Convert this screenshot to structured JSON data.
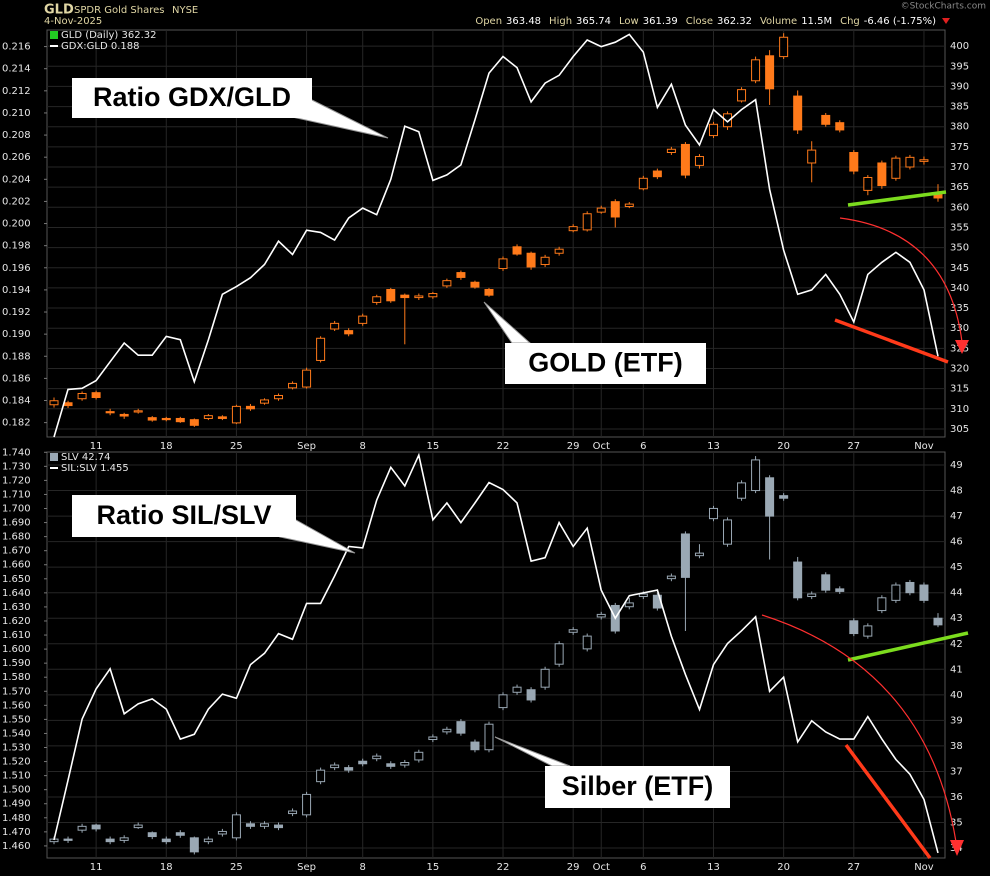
{
  "header": {
    "symbol": "GLD",
    "name": "SPDR Gold Shares",
    "exchange": "NYSE",
    "date": "4-Nov-2025",
    "watermark": "©StockCharts.com",
    "quote": [
      {
        "label": "Open",
        "value": 363.48
      },
      {
        "label": "High",
        "value": 365.74
      },
      {
        "label": "Low",
        "value": 361.39
      },
      {
        "label": "Close",
        "value": 362.32
      },
      {
        "label": "Volume",
        "value": "11.5M"
      },
      {
        "label": "Chg",
        "value": "-6.46 (-1.75%)"
      }
    ]
  },
  "chart_data": [
    {
      "type": "candlestick",
      "categories": [
        null,
        null,
        null,
        "11",
        null,
        null,
        null,
        null,
        "18",
        null,
        null,
        null,
        null,
        "25",
        null,
        null,
        null,
        null,
        "Sep",
        null,
        null,
        null,
        "8",
        null,
        null,
        null,
        null,
        "15",
        null,
        null,
        null,
        null,
        "22",
        null,
        null,
        null,
        null,
        "29",
        null,
        "Oct",
        null,
        null,
        "6",
        null,
        null,
        null,
        null,
        "13",
        null,
        null,
        null,
        null,
        "20",
        null,
        null,
        null,
        null,
        "27",
        null,
        null,
        null,
        null,
        "Nov",
        null
      ],
      "ylim": [
        0.1807,
        0.2175
      ],
      "yticks": [
        0.182,
        0.184,
        0.186,
        0.188,
        {
          "value": 0.19,
          "label": "0.190"
        },
        0.192,
        0.194,
        0.196,
        0.198,
        {
          "value": 0.2,
          "label": "0.200"
        },
        0.202,
        0.204,
        0.206,
        0.208,
        {
          "value": 0.21,
          "label": "0.210"
        },
        0.212,
        0.214,
        0.216
      ],
      "y2lim": [
        303,
        404
      ],
      "y2ticks": [
        305,
        310,
        315,
        320,
        325,
        330,
        335,
        340,
        345,
        350,
        355,
        360,
        365,
        370,
        375,
        380,
        385,
        390,
        395,
        400
      ],
      "grid": true,
      "annotations": [
        "Ratio GDX/GLD",
        "GOLD (ETF)"
      ],
      "series": [
        {
          "name": "GLD (Daily) 362.32",
          "type": "candlestick",
          "axis": "y2",
          "color": "#ff7a1a",
          "legend_color": "#22cc22",
          "open": [
            311.0,
            311.5,
            312.5,
            314.0,
            309.3,
            308.6,
            309.2,
            307.8,
            307.6,
            307.6,
            307.3,
            307.6,
            308.0,
            306.5,
            310.6,
            311.4,
            312.5,
            315.2,
            315.4,
            322.0,
            329.8,
            329.4,
            331.2,
            336.4,
            339.6,
            338.2,
            337.6,
            337.8,
            340.5,
            343.8,
            341.4,
            339.6,
            344.8,
            350.2,
            348.6,
            345.8,
            348.6,
            354.2,
            354.4,
            358.8,
            361.4,
            360.2,
            364.6,
            369.0,
            373.6,
            375.6,
            370.4,
            377.8,
            380.0,
            386.4,
            391.4,
            397.6,
            397.4,
            387.6,
            371.0,
            382.8,
            381.0,
            373.6,
            364.2,
            371.0,
            367.2,
            370.0,
            371.4,
            363.48
          ],
          "high": [
            312.8,
            312.0,
            314.3,
            314.5,
            310.0,
            309.0,
            310.0,
            308.2,
            308.0,
            308.0,
            307.6,
            308.7,
            308.4,
            311.0,
            311.2,
            312.6,
            313.8,
            316.8,
            320.2,
            328.0,
            331.8,
            330.0,
            333.6,
            338.3,
            340.0,
            338.6,
            338.6,
            339.0,
            342.3,
            344.3,
            341.8,
            340.0,
            347.8,
            350.8,
            349.0,
            348.2,
            350.2,
            355.8,
            359.0,
            360.4,
            362.0,
            361.3,
            367.8,
            369.6,
            375.0,
            376.2,
            373.2,
            381.2,
            383.8,
            389.8,
            397.4,
            399.0,
            403.2,
            389.0,
            376.4,
            383.4,
            381.6,
            374.2,
            368.0,
            371.6,
            372.8,
            373.0,
            372.6,
            365.74
          ],
          "low": [
            310.3,
            310.2,
            312.0,
            312.3,
            308.4,
            307.5,
            308.8,
            306.8,
            306.9,
            306.5,
            305.5,
            307.2,
            307.2,
            306.2,
            309.5,
            311.0,
            312.0,
            314.8,
            315.0,
            321.5,
            329.3,
            328.0,
            330.6,
            335.8,
            336.3,
            326.0,
            337.0,
            337.3,
            340.0,
            342.0,
            339.8,
            337.8,
            344.2,
            348.0,
            344.5,
            345.2,
            348.0,
            353.8,
            354.0,
            358.4,
            355.0,
            359.8,
            364.2,
            367.0,
            373.0,
            367.2,
            369.6,
            377.2,
            379.2,
            386.0,
            390.8,
            385.4,
            396.8,
            378.2,
            366.2,
            380.0,
            378.6,
            368.2,
            363.0,
            364.6,
            366.6,
            369.4,
            370.6,
            361.39
          ],
          "close": [
            312.0,
            310.8,
            313.8,
            312.8,
            309.0,
            308.2,
            309.5,
            307.2,
            307.3,
            306.8,
            305.9,
            308.3,
            307.6,
            310.6,
            310.0,
            312.2,
            313.3,
            316.3,
            319.6,
            327.5,
            331.2,
            328.6,
            333.0,
            337.8,
            336.8,
            337.6,
            338.0,
            338.6,
            341.8,
            342.6,
            340.2,
            338.2,
            347.2,
            348.4,
            345.2,
            347.6,
            349.6,
            355.2,
            358.4,
            359.8,
            357.6,
            360.8,
            367.2,
            367.6,
            374.4,
            368.0,
            372.6,
            380.6,
            383.2,
            389.2,
            396.6,
            389.4,
            402.2,
            379.2,
            374.2,
            380.6,
            379.2,
            369.0,
            367.4,
            365.4,
            372.2,
            372.4,
            371.8,
            362.32
          ]
        },
        {
          "name": "GDX:GLD 0.188",
          "type": "line",
          "color": "#ffffff",
          "values": [
            0.1807,
            0.185,
            0.1851,
            0.1858,
            0.1875,
            0.1892,
            0.1881,
            0.1881,
            0.1898,
            0.1895,
            0.1857,
            0.1895,
            0.1936,
            0.1943,
            0.1951,
            0.1963,
            0.1984,
            0.1972,
            0.1994,
            0.1992,
            0.1985,
            0.2005,
            0.2014,
            0.2008,
            0.204,
            0.2088,
            0.2083,
            0.2039,
            0.2044,
            0.2053,
            0.2094,
            0.2136,
            0.2151,
            0.2141,
            0.211,
            0.2127,
            0.2134,
            0.2151,
            0.2166,
            0.216,
            0.2164,
            0.2171,
            0.2155,
            0.2105,
            0.2126,
            0.2089,
            0.2071,
            0.2103,
            0.2092,
            0.2103,
            0.2112,
            0.2031,
            0.1976,
            0.1936,
            0.194,
            0.1954,
            0.1936,
            0.1911,
            0.1954,
            0.1965,
            0.1974,
            0.1965,
            0.194,
            0.188
          ]
        }
      ]
    },
    {
      "type": "candlestick",
      "categories": [
        null,
        null,
        null,
        "11",
        null,
        null,
        null,
        null,
        "18",
        null,
        null,
        null,
        null,
        "25",
        null,
        null,
        null,
        null,
        "Sep",
        null,
        null,
        null,
        "8",
        null,
        null,
        null,
        null,
        "15",
        null,
        null,
        null,
        null,
        "22",
        null,
        null,
        null,
        null,
        "29",
        null,
        "Oct",
        null,
        null,
        "6",
        null,
        null,
        null,
        null,
        "13",
        null,
        null,
        null,
        null,
        "20",
        null,
        null,
        null,
        null,
        "27",
        null,
        null,
        null,
        null,
        "Nov",
        null
      ],
      "ylim": [
        1.4514,
        1.7402
      ],
      "yticks": [
        {
          "value": 1.46,
          "label": "1.460"
        },
        {
          "value": 1.47,
          "label": "1.470"
        },
        {
          "value": 1.48,
          "label": "1.480"
        },
        {
          "value": 1.49,
          "label": "1.490"
        },
        {
          "value": 1.5,
          "label": "1.500"
        },
        {
          "value": 1.51,
          "label": "1.510"
        },
        {
          "value": 1.52,
          "label": "1.520"
        },
        {
          "value": 1.53,
          "label": "1.530"
        },
        {
          "value": 1.54,
          "label": "1.540"
        },
        {
          "value": 1.55,
          "label": "1.550"
        },
        {
          "value": 1.56,
          "label": "1.560"
        },
        {
          "value": 1.57,
          "label": "1.570"
        },
        {
          "value": 1.58,
          "label": "1.580"
        },
        {
          "value": 1.59,
          "label": "1.590"
        },
        {
          "value": 1.6,
          "label": "1.600"
        },
        {
          "value": 1.61,
          "label": "1.610"
        },
        {
          "value": 1.62,
          "label": "1.620"
        },
        {
          "value": 1.63,
          "label": "1.630"
        },
        {
          "value": 1.64,
          "label": "1.640"
        },
        {
          "value": 1.65,
          "label": "1.650"
        },
        {
          "value": 1.66,
          "label": "1.660"
        },
        {
          "value": 1.67,
          "label": "1.670"
        },
        {
          "value": 1.68,
          "label": "1.680"
        },
        {
          "value": 1.69,
          "label": "1.690"
        },
        {
          "value": 1.7,
          "label": "1.700"
        },
        {
          "value": 1.71,
          "label": "1.710"
        },
        {
          "value": 1.72,
          "label": "1.720"
        },
        {
          "value": 1.73,
          "label": "1.730"
        },
        {
          "value": 1.74,
          "label": "1.740"
        }
      ],
      "y2lim": [
        33.61,
        49.51
      ],
      "y2ticks": [
        34,
        35,
        36,
        37,
        38,
        39,
        40,
        41,
        42,
        43,
        44,
        45,
        46,
        47,
        48,
        49
      ],
      "grid": true,
      "annotations": [
        "Ratio SIL/SLV",
        "Silber (ETF)"
      ],
      "series": [
        {
          "name": "SLV 42.74",
          "type": "candlestick",
          "axis": "y2",
          "color": "#9aa8b4",
          "legend_color": "#9aa8b4",
          "open": [
            34.25,
            34.35,
            34.7,
            34.9,
            34.35,
            34.3,
            34.8,
            34.6,
            34.35,
            34.6,
            34.4,
            34.25,
            34.55,
            34.4,
            34.95,
            34.85,
            34.9,
            35.35,
            35.3,
            36.6,
            37.15,
            37.15,
            37.4,
            37.5,
            37.3,
            37.25,
            37.45,
            38.25,
            38.55,
            38.95,
            38.15,
            37.85,
            39.5,
            40.1,
            40.2,
            40.3,
            41.2,
            42.45,
            41.8,
            43.05,
            43.5,
            43.45,
            43.85,
            43.9,
            44.55,
            46.3,
            45.45,
            46.9,
            45.9,
            47.7,
            48.0,
            48.5,
            47.8,
            45.2,
            43.85,
            44.7,
            44.15,
            42.9,
            42.3,
            43.3,
            43.7,
            44.4,
            44.3,
            43.0
          ],
          "high": [
            34.45,
            34.45,
            34.95,
            34.95,
            34.45,
            34.5,
            35.0,
            34.65,
            34.45,
            34.7,
            34.45,
            34.45,
            34.75,
            35.4,
            35.05,
            35.05,
            35.0,
            35.55,
            36.2,
            37.15,
            37.35,
            37.25,
            37.5,
            37.7,
            37.4,
            37.45,
            37.85,
            38.45,
            38.75,
            39.05,
            38.25,
            38.95,
            40.1,
            40.4,
            40.3,
            41.1,
            42.1,
            42.65,
            42.4,
            43.25,
            43.6,
            43.8,
            44.05,
            44.0,
            44.75,
            46.4,
            45.9,
            47.4,
            46.95,
            48.4,
            49.35,
            48.6,
            47.9,
            45.4,
            44.05,
            44.8,
            44.25,
            43.0,
            42.8,
            43.9,
            44.4,
            44.5,
            44.4,
            43.2
          ],
          "low": [
            34.15,
            34.2,
            34.6,
            34.65,
            34.15,
            34.2,
            34.75,
            34.35,
            34.15,
            34.4,
            33.75,
            34.15,
            34.45,
            34.3,
            34.75,
            34.75,
            34.7,
            35.25,
            35.2,
            36.5,
            37.05,
            36.95,
            37.2,
            37.4,
            37.1,
            37.15,
            37.35,
            38.15,
            38.45,
            38.4,
            37.75,
            37.75,
            39.4,
            40.0,
            39.7,
            40.2,
            41.1,
            42.35,
            41.7,
            42.95,
            42.4,
            43.35,
            43.75,
            43.3,
            44.45,
            42.5,
            45.35,
            46.8,
            45.8,
            47.6,
            47.9,
            45.3,
            47.6,
            43.7,
            43.75,
            44.0,
            43.95,
            42.3,
            42.2,
            43.2,
            43.6,
            43.9,
            43.6,
            42.65
          ],
          "close": [
            34.35,
            34.3,
            34.85,
            34.75,
            34.25,
            34.4,
            34.9,
            34.45,
            34.25,
            34.5,
            33.85,
            34.35,
            34.65,
            35.3,
            34.85,
            34.95,
            34.8,
            35.45,
            36.1,
            37.05,
            37.25,
            37.05,
            37.3,
            37.6,
            37.2,
            37.35,
            37.75,
            38.35,
            38.65,
            38.5,
            37.85,
            38.85,
            40.0,
            40.3,
            39.8,
            41.0,
            42.0,
            42.55,
            42.3,
            43.15,
            42.5,
            43.6,
            43.95,
            43.4,
            44.65,
            44.6,
            45.55,
            47.3,
            46.85,
            48.3,
            49.2,
            47.0,
            47.7,
            43.8,
            43.95,
            44.1,
            44.05,
            42.4,
            42.7,
            43.8,
            44.3,
            44.0,
            43.7,
            42.74
          ]
        },
        {
          "name": "SIL:SLV 1.455",
          "type": "line",
          "color": "#ffffff",
          "values": [
            1.4642,
            1.5067,
            1.5502,
            1.5717,
            1.586,
            1.554,
            1.561,
            1.5646,
            1.5573,
            1.536,
            1.5394,
            1.5573,
            1.568,
            1.565,
            1.589,
            1.597,
            1.611,
            1.607,
            1.6325,
            1.6325,
            1.652,
            1.673,
            1.672,
            1.706,
            1.7293,
            1.716,
            1.738,
            1.692,
            1.704,
            1.69,
            1.704,
            1.7185,
            1.7135,
            1.704,
            1.6626,
            1.665,
            1.69,
            1.673,
            1.686,
            1.642,
            1.622,
            1.638,
            1.64,
            1.642,
            1.609,
            1.582,
            1.557,
            1.589,
            1.604,
            1.613,
            1.623,
            1.57,
            1.58,
            1.534,
            1.549,
            1.541,
            1.536,
            1.536,
            1.552,
            1.536,
            1.5215,
            1.511,
            1.493,
            1.455
          ]
        }
      ]
    }
  ]
}
